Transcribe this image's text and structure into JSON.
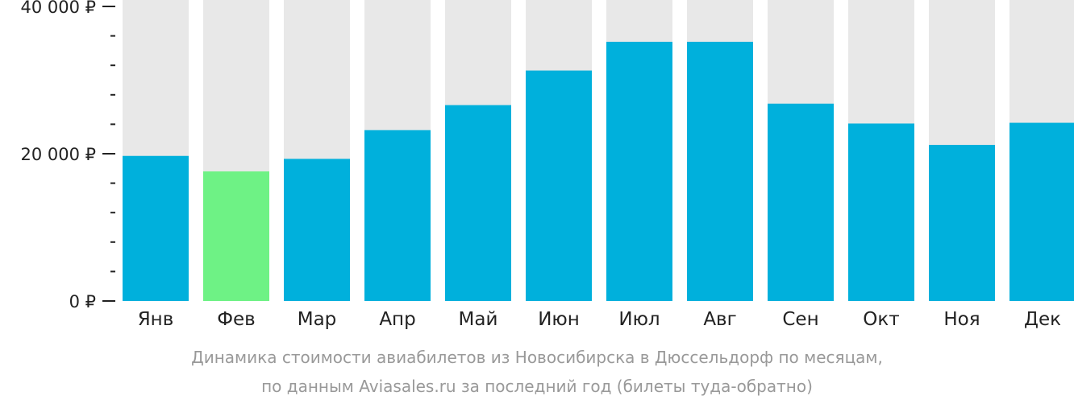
{
  "chart_data": {
    "type": "bar",
    "categories": [
      "Янв",
      "Фев",
      "Мар",
      "Апр",
      "Май",
      "Июн",
      "Июл",
      "Авг",
      "Сен",
      "Окт",
      "Ноя",
      "Дек"
    ],
    "values": [
      19700,
      17600,
      19300,
      23200,
      26600,
      31300,
      35200,
      35200,
      26800,
      24100,
      21200,
      24200
    ],
    "ylim": [
      0,
      40000
    ],
    "yticks": [
      0,
      20000,
      40000
    ],
    "ytick_labels": [
      "0 ₽",
      "20 000 ₽",
      "40 000 ₽"
    ],
    "minor_ticks_per_major": 5,
    "highlight_index": 1,
    "colors": {
      "bar": "#00b0dc",
      "highlight": "#6ef285",
      "track": "#e8e8e8",
      "axis": "#222222"
    },
    "grid": false,
    "legend": "none"
  },
  "caption": {
    "line1": "Динамика стоимости авиабилетов из Новосибирска в Дюссельдорф по месяцам,",
    "line2": "по данным Aviasales.ru за последний год (билеты туда-обратно)"
  }
}
